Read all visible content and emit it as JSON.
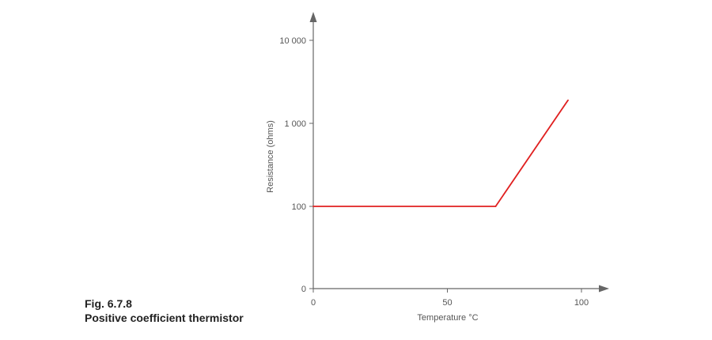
{
  "caption": {
    "figure_number": "Fig. 6.7.8",
    "title": "Positive coefficient thermistor"
  },
  "chart_data": {
    "type": "line",
    "title": "",
    "xlabel": "Temperature °C",
    "ylabel": "Resistance (ohms)",
    "x_ticks": [
      {
        "value": 0,
        "label": "0"
      },
      {
        "value": 50,
        "label": "50"
      },
      {
        "value": 100,
        "label": "100"
      }
    ],
    "y_ticks": [
      {
        "value": 0,
        "label": "0"
      },
      {
        "value": 100,
        "label": "100"
      },
      {
        "value": 1000,
        "label": "1 000"
      },
      {
        "value": 10000,
        "label": "10 000"
      }
    ],
    "y_scale": "log (0 at origin)",
    "xlim": [
      0,
      110
    ],
    "grid": false,
    "series": [
      {
        "color": "#e02020",
        "points": [
          {
            "x": 0,
            "y": 100
          },
          {
            "x": 68,
            "y": 100
          },
          {
            "x": 95,
            "y": 1900
          }
        ]
      }
    ],
    "axis_color": "#666666"
  }
}
